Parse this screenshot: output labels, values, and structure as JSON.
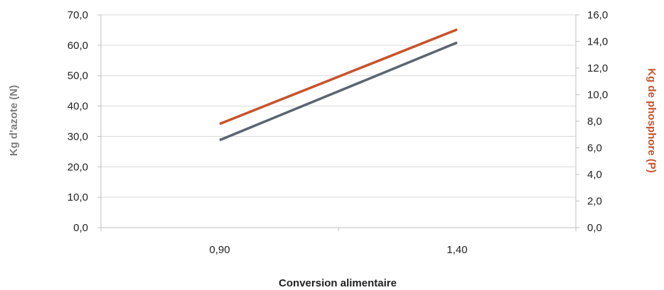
{
  "chart_data": {
    "type": "line",
    "categories": [
      "0,90",
      "1,40"
    ],
    "xlabel": "Conversion alimentaire",
    "ylabel_left": "Kg d'azote (N)",
    "ylabel_right": "Kg de phosphore (P)",
    "y_left": {
      "range": [
        0,
        70
      ],
      "ticks": [
        "0,0",
        "10,0",
        "20,0",
        "30,0",
        "40,0",
        "50,0",
        "60,0",
        "70,0"
      ]
    },
    "y_right": {
      "range": [
        0,
        16
      ],
      "ticks": [
        "0,0",
        "2,0",
        "4,0",
        "6,0",
        "8,0",
        "10,0",
        "12,0",
        "14,0",
        "16,0"
      ]
    },
    "grid": true,
    "series": [
      {
        "axis": "left",
        "color": "#5b6470",
        "values": [
          28.8,
          60.9
        ]
      },
      {
        "axis": "right",
        "color": "#c9522a",
        "values": [
          7.8,
          14.9
        ]
      }
    ],
    "colors": {
      "left_axis_title": "#7f7f7f",
      "right_axis_title": "#c9522a"
    }
  }
}
